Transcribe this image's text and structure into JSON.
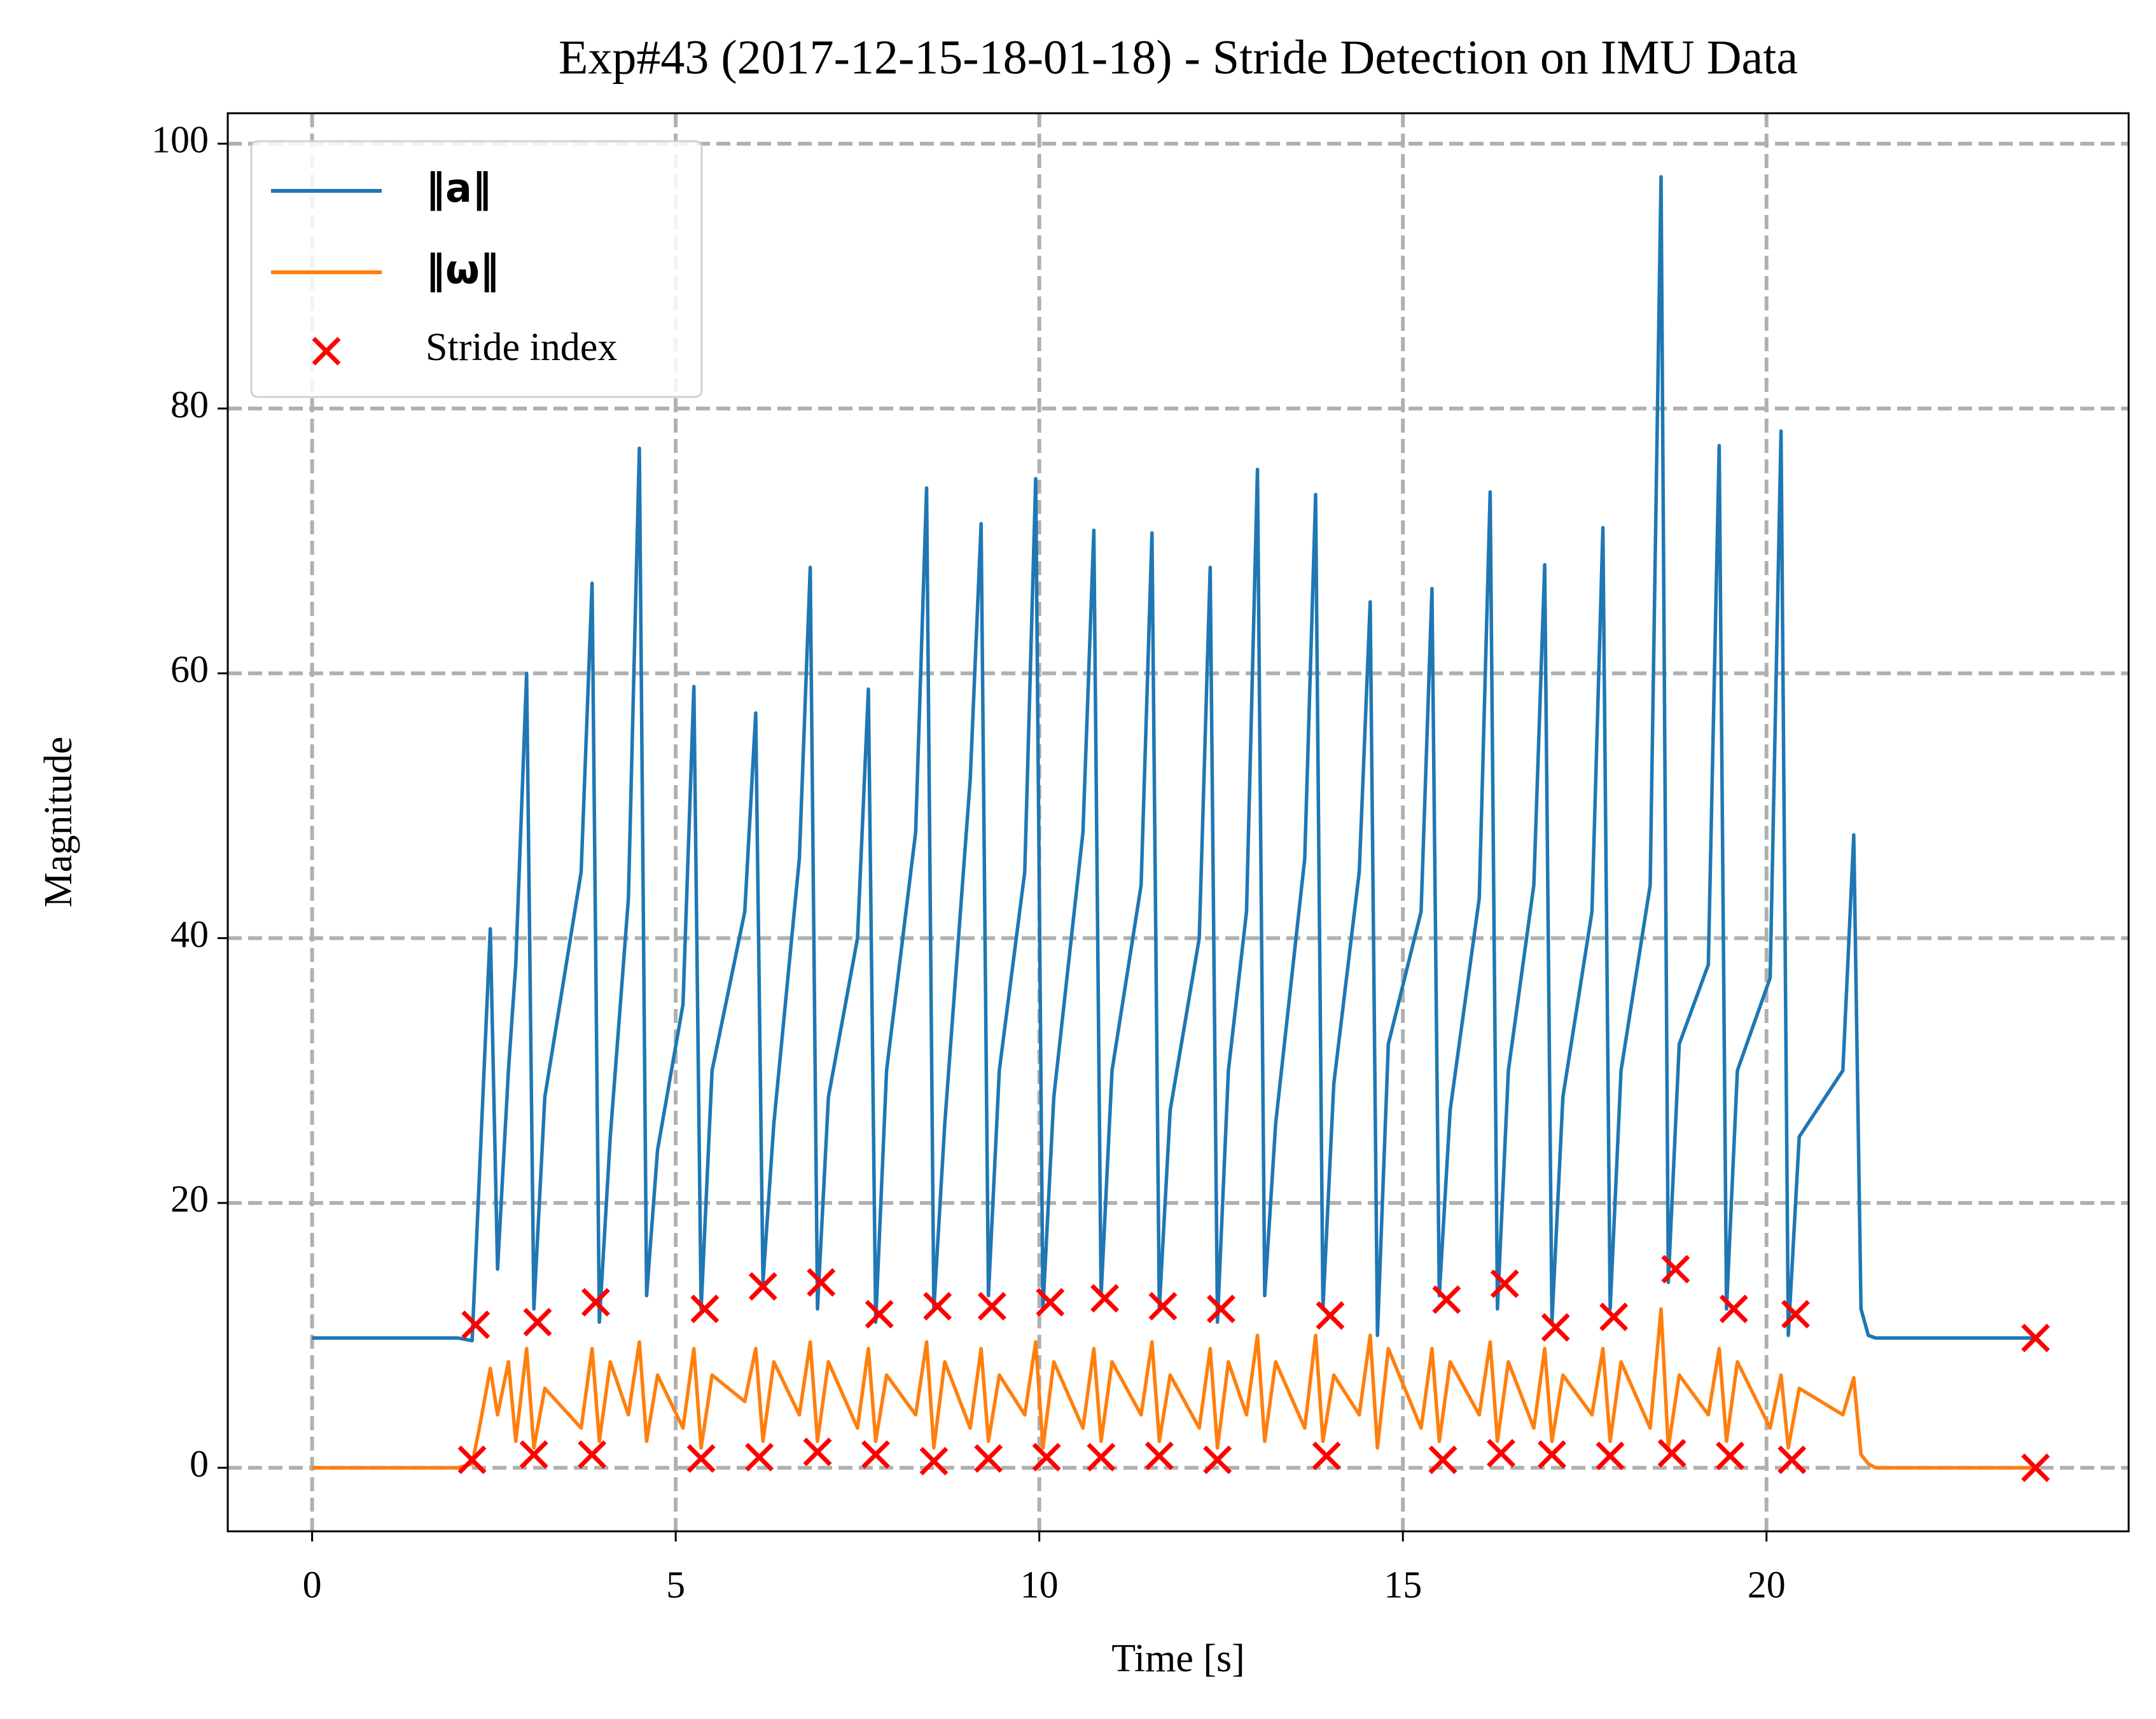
{
  "chart_data": {
    "type": "line",
    "title": "Exp#43 (2017-12-15-18-01-18) - Stride Detection on IMU Data",
    "x_label": "Time [s]",
    "y_label": "Magnitude",
    "xlim": [
      -1.16,
      24.98
    ],
    "ylim": [
      -4.8,
      102.3
    ],
    "xticks": [
      0,
      5,
      10,
      15,
      20
    ],
    "yticks": [
      0,
      20,
      40,
      60,
      80,
      100
    ],
    "grid": true,
    "legend": "upper left",
    "x": [
      0,
      1,
      2,
      2.2,
      2.3,
      2.45,
      2.55,
      2.7,
      2.8,
      2.95,
      3.05,
      3.2,
      3.7,
      3.85,
      3.95,
      4.1,
      4.35,
      4.5,
      4.6,
      4.75,
      5.1,
      5.25,
      5.35,
      5.5,
      5.95,
      6.1,
      6.2,
      6.35,
      6.7,
      6.85,
      6.95,
      7.1,
      7.5,
      7.65,
      7.75,
      7.9,
      8.3,
      8.45,
      8.55,
      8.7,
      9.05,
      9.2,
      9.3,
      9.45,
      9.8,
      9.95,
      10.05,
      10.2,
      10.6,
      10.75,
      10.85,
      11.0,
      11.4,
      11.55,
      11.65,
      11.8,
      12.2,
      12.35,
      12.45,
      12.6,
      12.85,
      13.0,
      13.1,
      13.25,
      13.65,
      13.8,
      13.9,
      14.05,
      14.4,
      14.55,
      14.65,
      14.8,
      15.25,
      15.4,
      15.5,
      15.65,
      16.05,
      16.2,
      16.3,
      16.45,
      16.8,
      16.95,
      17.05,
      17.2,
      17.6,
      17.75,
      17.85,
      18.0,
      18.4,
      18.55,
      18.65,
      18.8,
      19.2,
      19.35,
      19.45,
      19.6,
      20.05,
      20.2,
      20.3,
      20.45,
      21.05,
      21.2,
      21.3,
      21.4,
      21.5,
      22,
      23,
      23.7
    ],
    "series": [
      {
        "name": "‖a‖",
        "color": "#1f77b4",
        "values": [
          9.8,
          9.8,
          9.8,
          9.6,
          22,
          40.7,
          15,
          30,
          38,
          60,
          12,
          28,
          45,
          66.8,
          11,
          25,
          43,
          77,
          13,
          24,
          35,
          59,
          12,
          30,
          42,
          57,
          14,
          26,
          46,
          68,
          12,
          28,
          40,
          58.8,
          11,
          30,
          48,
          74,
          12,
          26,
          52,
          71.3,
          13,
          30,
          45,
          74.7,
          12,
          28,
          48,
          70.8,
          13,
          30,
          44,
          70.6,
          12,
          27,
          40,
          68,
          11,
          30,
          42,
          75.4,
          13,
          26,
          46,
          73.5,
          12,
          29,
          45,
          65.4,
          10,
          32,
          42,
          66.4,
          13,
          27,
          43,
          73.7,
          12,
          30,
          44,
          68.2,
          11,
          28,
          42,
          71,
          12,
          30,
          44,
          97.5,
          14,
          32,
          38,
          77.2,
          12,
          30,
          37,
          78.3,
          10,
          25,
          30,
          47.8,
          12,
          10,
          9.8,
          9.8,
          9.8,
          9.8
        ]
      },
      {
        "name": "‖ω‖",
        "color": "#ff7f0e",
        "values": [
          0,
          0,
          0,
          0.3,
          3,
          7.5,
          4,
          8,
          2,
          9,
          1.5,
          6,
          3,
          9,
          2,
          8,
          4,
          9.5,
          2,
          7,
          3,
          9,
          1.5,
          7,
          5,
          9,
          2,
          8,
          4,
          9.5,
          2,
          8,
          3,
          9,
          2,
          7,
          4,
          9.5,
          1.5,
          8,
          3,
          9,
          2,
          7,
          4,
          9.5,
          1.5,
          8,
          3,
          9,
          2,
          8,
          4,
          9.5,
          2,
          7,
          3,
          9,
          1.5,
          8,
          4,
          10,
          2,
          8,
          3,
          10,
          2,
          7,
          4,
          10,
          1.5,
          9,
          3,
          9,
          2,
          8,
          4,
          9.5,
          2,
          8,
          3,
          9,
          2,
          7,
          4,
          9,
          2,
          8,
          3,
          12,
          1.5,
          7,
          4,
          9,
          2,
          8,
          3,
          7,
          1.5,
          6,
          4,
          6.8,
          1,
          0.3,
          0,
          0,
          0,
          0
        ]
      }
    ],
    "markers": {
      "name": "Stride index",
      "color": "#ff0000",
      "type": "scatter",
      "x": [
        2.25,
        3.1,
        3.9,
        5.4,
        6.2,
        7.0,
        7.8,
        8.6,
        9.35,
        10.15,
        10.9,
        11.7,
        12.5,
        14.0,
        15.6,
        16.4,
        17.1,
        17.9,
        18.75,
        19.55,
        20.4,
        23.7,
        2.2,
        3.05,
        3.85,
        5.35,
        6.15,
        6.95,
        7.75,
        8.55,
        9.3,
        10.1,
        10.85,
        11.65,
        12.45,
        13.95,
        15.55,
        16.35,
        17.05,
        17.85,
        18.7,
        19.5,
        20.35,
        23.7
      ],
      "values": [
        10.8,
        11,
        12.5,
        12,
        13.7,
        14,
        11.6,
        12.2,
        12.2,
        12.5,
        12.8,
        12.2,
        12,
        11.5,
        12.7,
        13.9,
        10.6,
        11.4,
        15,
        12,
        11.6,
        9.8,
        0.6,
        1,
        1,
        0.7,
        0.8,
        1.2,
        1,
        0.5,
        0.7,
        0.8,
        0.8,
        0.9,
        0.6,
        0.9,
        0.6,
        1.1,
        1,
        0.9,
        1.1,
        0.9,
        0.6,
        0
      ]
    }
  }
}
